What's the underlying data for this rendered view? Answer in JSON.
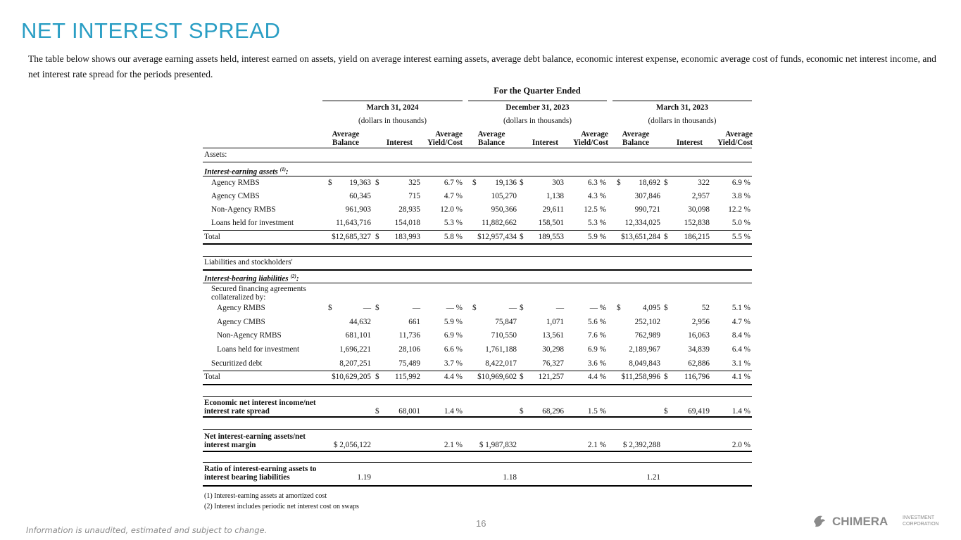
{
  "title": "NET INTEREST SPREAD",
  "intro": "The table below shows our average earning assets held, interest earned on assets, yield on average interest earning assets, average debt balance, economic interest expense, economic average cost of funds, economic net interest income, and net interest rate spread for the periods presented.",
  "table": {
    "caption": "For the Quarter Ended",
    "periods": [
      {
        "date": "March 31, 2024",
        "unit": "(dollars in thousands)"
      },
      {
        "date": "December 31, 2023",
        "unit": "(dollars in thousands)"
      },
      {
        "date": "March 31, 2023",
        "unit": "(dollars in thousands)"
      }
    ],
    "columns": [
      "Average Balance",
      "Interest",
      "Average Yield/Cost"
    ],
    "rows": [
      {
        "label": "Assets:"
      },
      {
        "label": "Interest-earning assets",
        "sup": "(1)",
        "label_suffix": ":"
      },
      {
        "label": "Agency RMBS",
        "cells": [
          {
            "cur": "$",
            "v": "19,363"
          },
          {
            "cur": "$",
            "v": "325"
          },
          "6.7 %",
          {
            "cur": "$",
            "v": "19,136"
          },
          {
            "cur": "$",
            "v": "303"
          },
          "6.3 %",
          {
            "cur": "$",
            "v": "18,692"
          },
          {
            "cur": "$",
            "v": "322"
          },
          "6.9 %"
        ]
      },
      {
        "label": "Agency CMBS",
        "cells": [
          "60,345",
          "715",
          "4.7 %",
          "105,270",
          "1,138",
          "4.3 %",
          "307,846",
          "2,957",
          "3.8 %"
        ]
      },
      {
        "label": "Non-Agency RMBS",
        "cells": [
          "961,903",
          "28,935",
          "12.0 %",
          "950,366",
          "29,611",
          "12.5 %",
          "990,721",
          "30,098",
          "12.2 %"
        ]
      },
      {
        "label": "Loans held for investment",
        "cells": [
          "11,643,716",
          "154,018",
          "5.3 %",
          "11,882,662",
          "158,501",
          "5.3 %",
          "12,334,025",
          "152,838",
          "5.0 %"
        ]
      },
      {
        "label": "Total",
        "cells": [
          "$12,685,327",
          {
            "cur": "$",
            "v": "183,993"
          },
          "5.8 %",
          "$12,957,434",
          {
            "cur": "$",
            "v": "189,553"
          },
          "5.9 %",
          "$13,651,284",
          {
            "cur": "$",
            "v": "186,215"
          },
          "5.5 %"
        ]
      },
      {
        "label": "Liabilities and stockholders'"
      },
      {
        "label": "Interest-bearing liabilities",
        "sup": "(2)",
        "label_suffix": ":"
      },
      {
        "label": "Secured financing agreements collateralized by:"
      },
      {
        "label": "Agency RMBS",
        "cells": [
          {
            "cur": "$",
            "v": "—"
          },
          {
            "cur": "$",
            "v": "—"
          },
          "— %",
          {
            "cur": "$",
            "v": "—"
          },
          {
            "cur": "$",
            "v": "—"
          },
          "— %",
          {
            "cur": "$",
            "v": "4,095"
          },
          {
            "cur": "$",
            "v": "52"
          },
          "5.1 %"
        ]
      },
      {
        "label": "Agency CMBS",
        "cells": [
          "44,632",
          "661",
          "5.9 %",
          "75,847",
          "1,071",
          "5.6 %",
          "252,102",
          "2,956",
          "4.7 %"
        ]
      },
      {
        "label": "Non-Agency RMBS",
        "cells": [
          "681,101",
          "11,736",
          "6.9 %",
          "710,550",
          "13,561",
          "7.6 %",
          "762,989",
          "16,063",
          "8.4 %"
        ]
      },
      {
        "label": "Loans held for investment",
        "cells": [
          "1,696,221",
          "28,106",
          "6.6 %",
          "1,761,188",
          "30,298",
          "6.9 %",
          "2,189,967",
          "34,839",
          "6.4 %"
        ]
      },
      {
        "label": "Securitized debt",
        "cells": [
          "8,207,251",
          "75,489",
          "3.7 %",
          "8,422,017",
          "76,327",
          "3.6 %",
          "8,049,843",
          "62,886",
          "3.1 %"
        ]
      },
      {
        "label": "Total",
        "cells": [
          "$10,629,205",
          {
            "cur": "$",
            "v": "115,992"
          },
          "4.4 %",
          "$10,969,602",
          {
            "cur": "$",
            "v": "121,257"
          },
          "4.4 %",
          "$11,258,996",
          {
            "cur": "$",
            "v": "116,796"
          },
          "4.1 %"
        ]
      },
      {
        "label": "Economic net interest income/net interest rate spread",
        "cells": [
          null,
          {
            "cur": "$",
            "v": "68,001"
          },
          "1.4 %",
          null,
          {
            "cur": "$",
            "v": "68,296"
          },
          "1.5 %",
          null,
          {
            "cur": "$",
            "v": "69,419"
          },
          "1.4 %"
        ]
      },
      {
        "label": "Net interest-earning assets/net interest margin",
        "cells": [
          "$ 2,056,122",
          null,
          "2.1 %",
          "$ 1,987,832",
          null,
          "2.1 %",
          "$ 2,392,288",
          null,
          "2.0 %"
        ]
      },
      {
        "label": "Ratio of interest-earning assets to interest bearing liabilities",
        "cells": [
          "1.19",
          null,
          null,
          "1.18",
          null,
          null,
          "1.21",
          null,
          null
        ]
      }
    ],
    "footnotes": [
      "(1) Interest-earning assets at amortized cost",
      "(2) Interest includes periodic net interest cost on swaps"
    ]
  },
  "footer": {
    "note": "Information is unaudited, estimated and subject to change.",
    "page": "16"
  },
  "logo": {
    "name": "CHIMERA",
    "line1": "INVESTMENT",
    "line2": "CORPORATION"
  }
}
